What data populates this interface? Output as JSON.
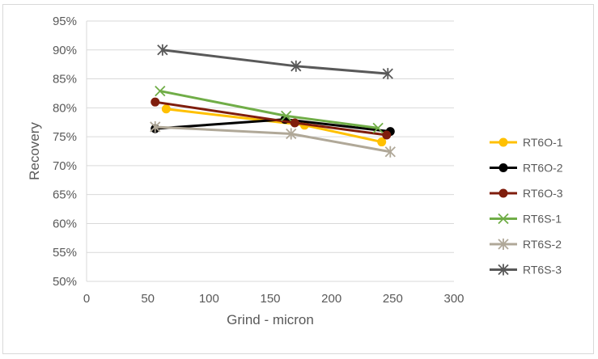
{
  "chart_data": {
    "type": "scatter",
    "title": "",
    "xlabel": "Grind - micron",
    "ylabel": "Recovery",
    "xlim": [
      0,
      300
    ],
    "ylim": [
      0.5,
      0.95
    ],
    "x_ticks": [
      "0",
      "50",
      "100",
      "150",
      "200",
      "250",
      "300"
    ],
    "y_ticks": [
      "50%",
      "55%",
      "60%",
      "65%",
      "70%",
      "75%",
      "80%",
      "85%",
      "90%",
      "95%"
    ],
    "grid": "horizontal",
    "legend_position": "right",
    "series": [
      {
        "name": "RT6O-1",
        "color": "#FFC000",
        "marker": "circle",
        "points": [
          [
            65,
            0.798
          ],
          [
            178,
            0.77
          ],
          [
            241,
            0.741
          ]
        ]
      },
      {
        "name": "RT6O-2",
        "color": "#000000",
        "marker": "circle",
        "points": [
          [
            56,
            0.764
          ],
          [
            162,
            0.78
          ],
          [
            248,
            0.759
          ]
        ]
      },
      {
        "name": "RT6O-3",
        "color": "#7F1D0C",
        "marker": "circle",
        "points": [
          [
            56,
            0.81
          ],
          [
            170,
            0.774
          ],
          [
            245,
            0.753
          ]
        ]
      },
      {
        "name": "RT6S-1",
        "color": "#70AD47",
        "marker": "x",
        "points": [
          [
            60,
            0.829
          ],
          [
            163,
            0.786
          ],
          [
            238,
            0.765
          ]
        ]
      },
      {
        "name": "RT6S-2",
        "color": "#B0A898",
        "marker": "star",
        "points": [
          [
            56,
            0.767
          ],
          [
            167,
            0.755
          ],
          [
            248,
            0.724
          ]
        ]
      },
      {
        "name": "RT6S-3",
        "color": "#595959",
        "marker": "star",
        "points": [
          [
            62,
            0.9
          ],
          [
            171,
            0.872
          ],
          [
            246,
            0.859
          ]
        ]
      }
    ]
  }
}
